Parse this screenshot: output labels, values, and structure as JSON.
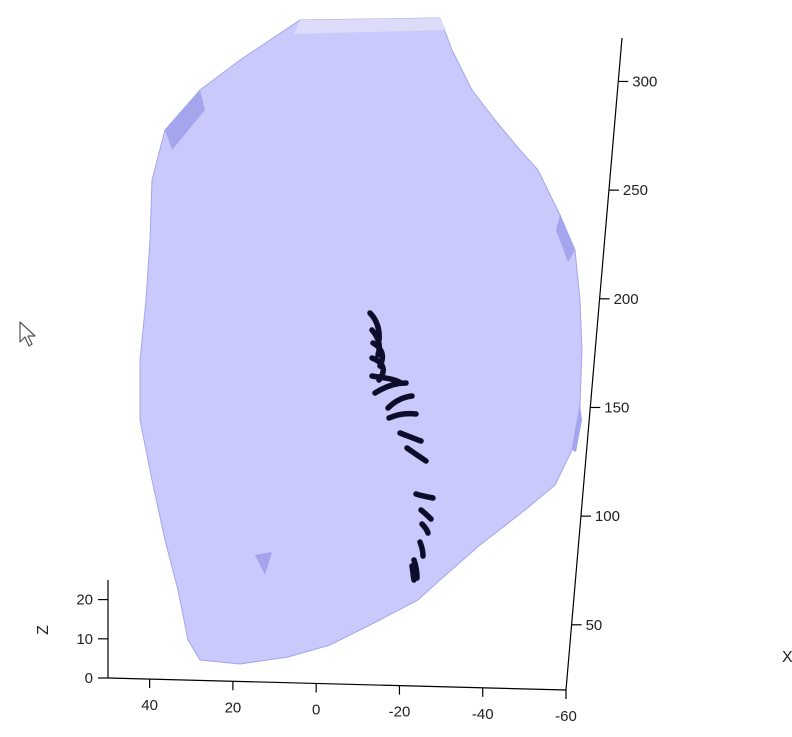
{
  "chart_data": {
    "type": "3d-surface",
    "title": "",
    "view": "3-D perspective view of a translucent surface with embedded dark segment markers",
    "colors": {
      "surface": "#c9c9fb",
      "surface_shade": "#a5a5ee",
      "surface_top": "#dcdcf8",
      "markers": "#0d0d2b",
      "axes": "#000000",
      "background": "#ffffff"
    },
    "axes": {
      "x": {
        "label": "",
        "ticks": [
          "40",
          "20",
          "0",
          "-20",
          "-40",
          "-60"
        ],
        "range": [
          50,
          -60
        ]
      },
      "y": {
        "label": "",
        "ticks": [
          "50",
          "100",
          "150",
          "200",
          "250",
          "300"
        ],
        "range": [
          20,
          320
        ]
      },
      "z": {
        "label": "Z",
        "ticks": [
          "0",
          "10",
          "20"
        ],
        "range": [
          0,
          25
        ]
      }
    },
    "cropped_label": "X",
    "grid": false,
    "legend": null,
    "markers": {
      "count": 16,
      "description": "dark elongated segments arranged along a curved line through the surface"
    }
  },
  "cursor": {
    "icon": "mouse-pointer-icon"
  }
}
